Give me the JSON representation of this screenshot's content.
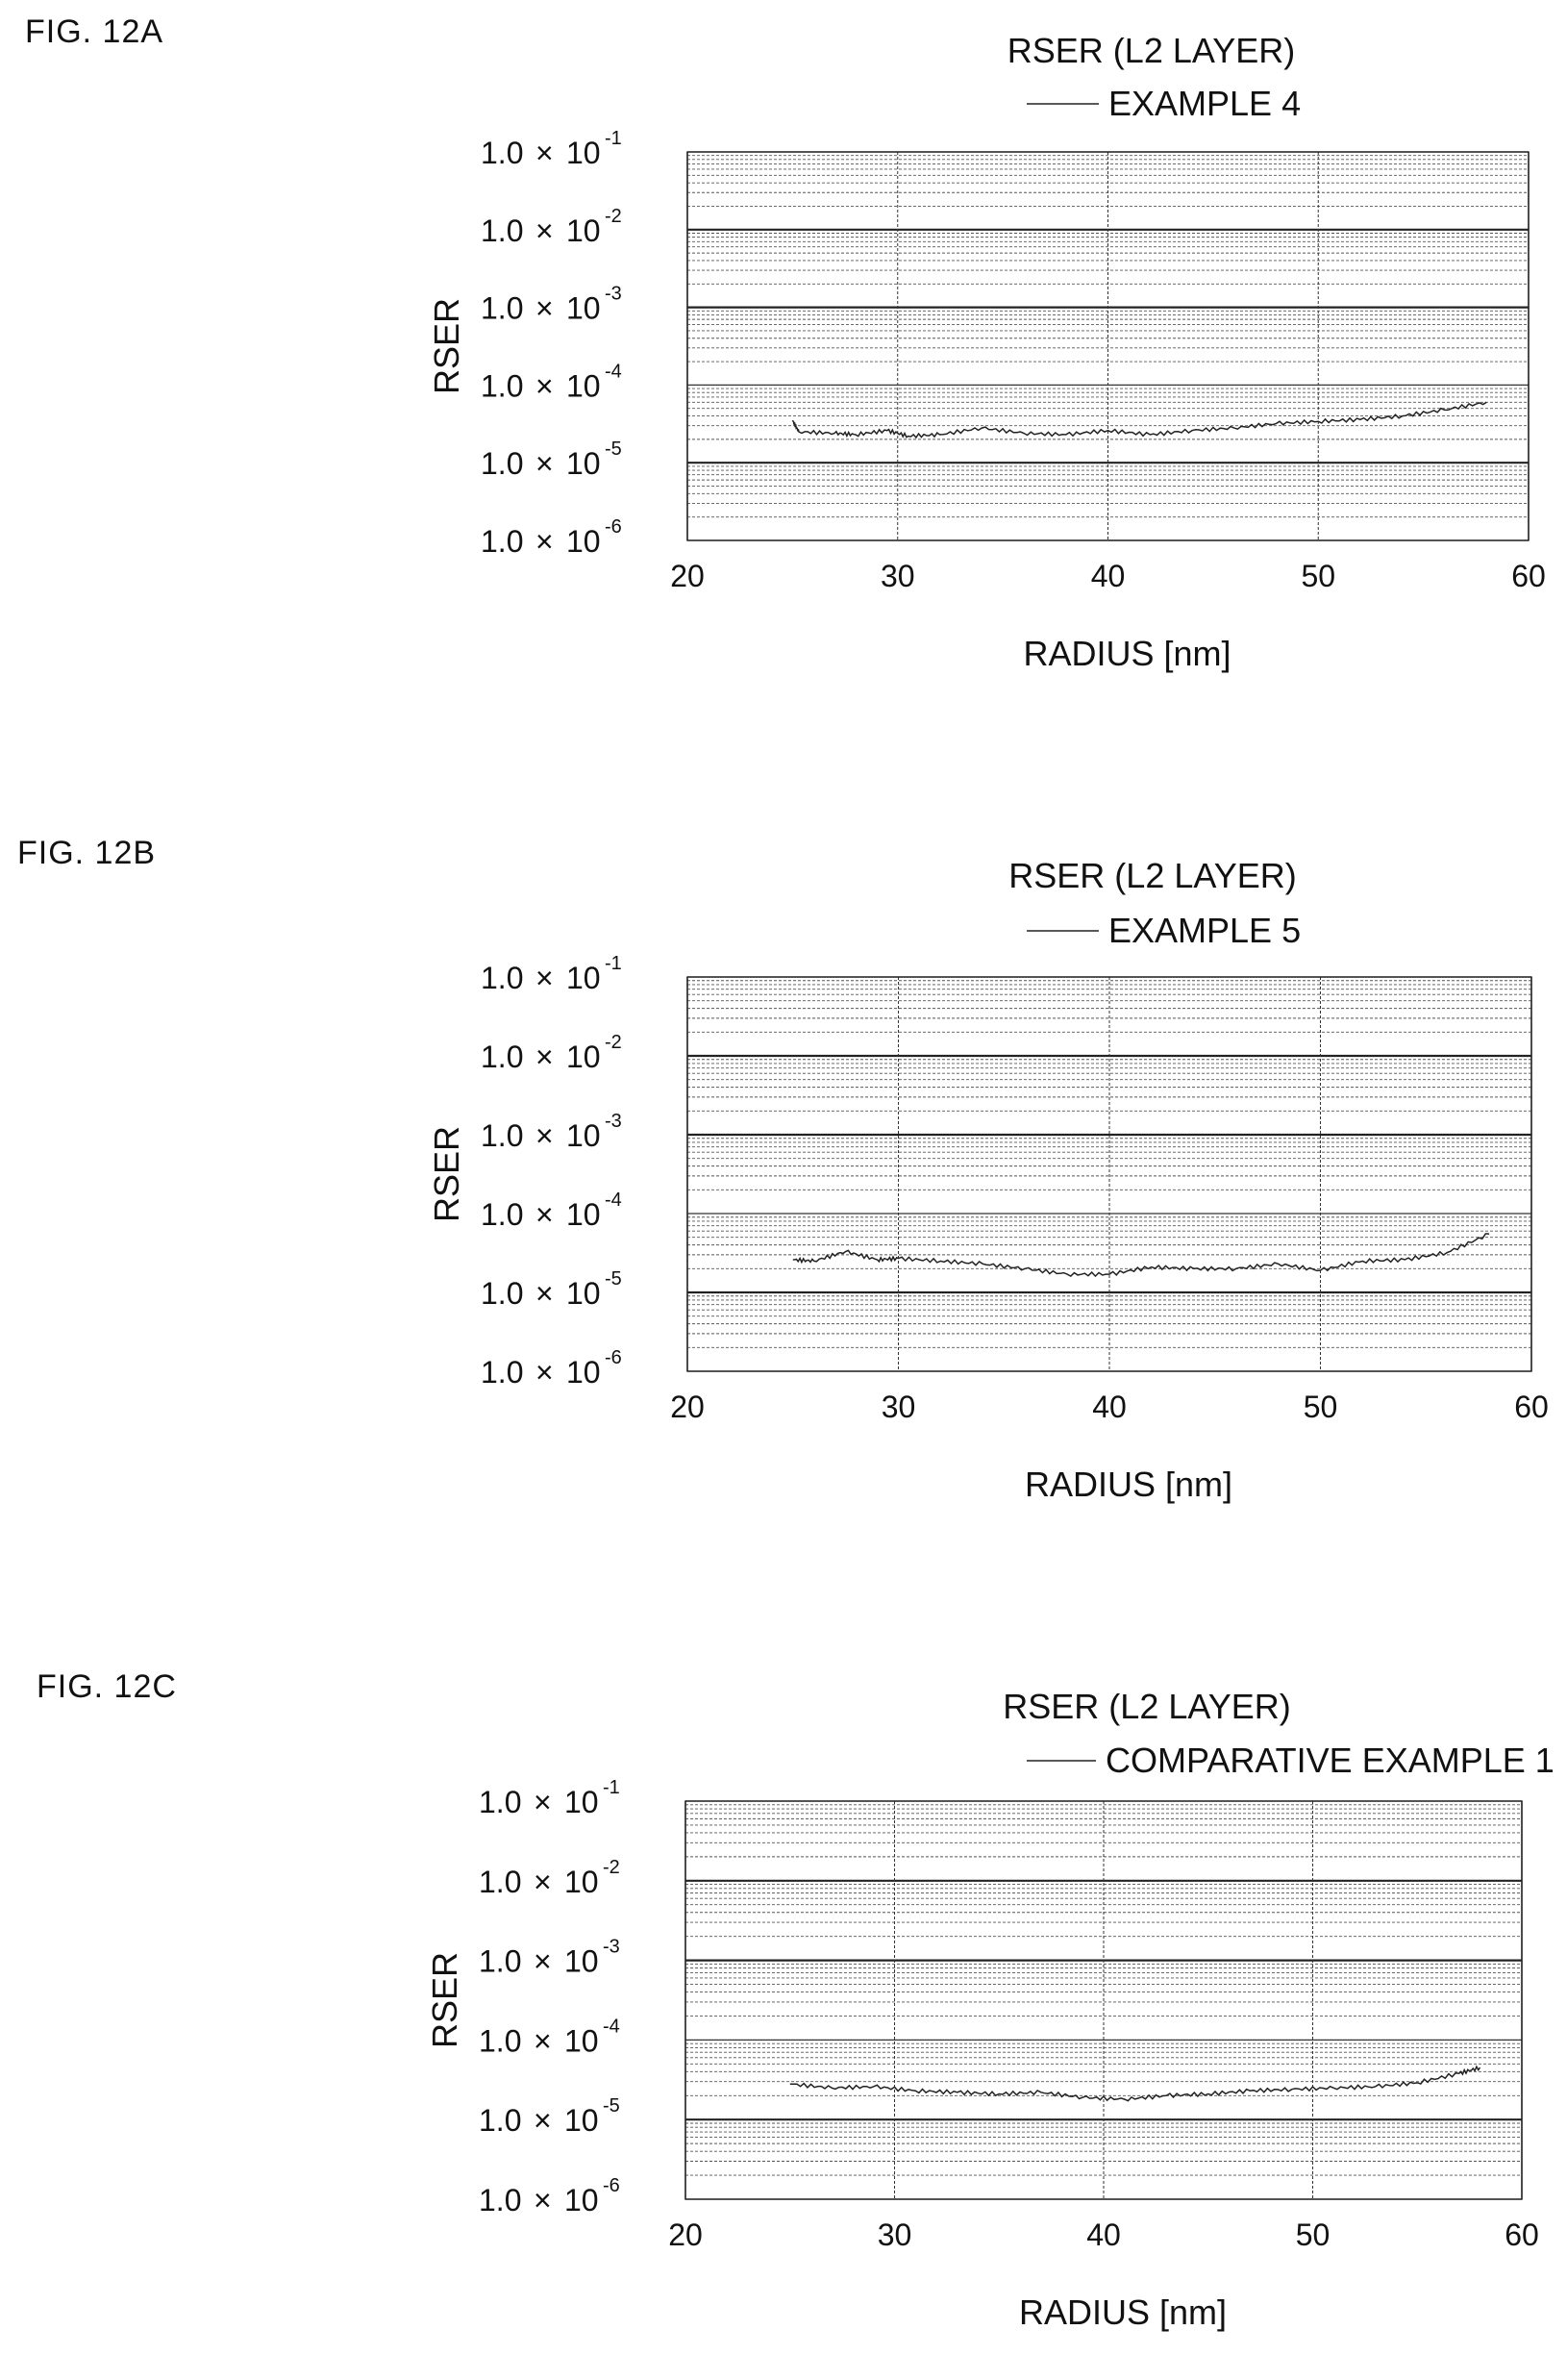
{
  "figures": [
    {
      "label": "FIG. 12A"
    },
    {
      "label": "FIG. 12B"
    },
    {
      "label": "FIG. 12C"
    }
  ],
  "chart_data": [
    {
      "type": "line",
      "title": "RSER (L2 LAYER)",
      "xlabel": "RADIUS [nm]",
      "ylabel": "RSER",
      "xlim": [
        20,
        60
      ],
      "ylim": [
        1e-06,
        0.1
      ],
      "yscale": "log",
      "grid": true,
      "xticks": [
        20,
        30,
        40,
        50,
        60
      ],
      "yticks": [
        {
          "mantissa": "1.0",
          "exponent": "-1",
          "value": 0.1
        },
        {
          "mantissa": "1.0",
          "exponent": "-2",
          "value": 0.01
        },
        {
          "mantissa": "1.0",
          "exponent": "-3",
          "value": 0.001
        },
        {
          "mantissa": "1.0",
          "exponent": "-4",
          "value": 0.0001
        },
        {
          "mantissa": "1.0",
          "exponent": "-5",
          "value": 1e-05
        },
        {
          "mantissa": "1.0",
          "exponent": "-6",
          "value": 1e-06
        }
      ],
      "series": [
        {
          "name": "EXAMPLE 4",
          "x": [
            25,
            25.3,
            27,
            28,
            29.5,
            30.5,
            32,
            34,
            36,
            38,
            40,
            42,
            44,
            46,
            48,
            50,
            52,
            54,
            56,
            58
          ],
          "y": [
            3.5e-05,
            2.5e-05,
            2.4e-05,
            2.3e-05,
            2.6e-05,
            2.2e-05,
            2.3e-05,
            2.8e-05,
            2.4e-05,
            2.3e-05,
            2.6e-05,
            2.3e-05,
            2.6e-05,
            2.8e-05,
            3.2e-05,
            3.4e-05,
            3.6e-05,
            4e-05,
            4.8e-05,
            6e-05
          ]
        }
      ]
    },
    {
      "type": "line",
      "title": "RSER (L2 LAYER)",
      "xlabel": "RADIUS [nm]",
      "ylabel": "RSER",
      "xlim": [
        20,
        60
      ],
      "ylim": [
        1e-06,
        0.1
      ],
      "yscale": "log",
      "grid": true,
      "xticks": [
        20,
        30,
        40,
        50,
        60
      ],
      "yticks": [
        {
          "mantissa": "1.0",
          "exponent": "-1",
          "value": 0.1
        },
        {
          "mantissa": "1.0",
          "exponent": "-2",
          "value": 0.01
        },
        {
          "mantissa": "1.0",
          "exponent": "-3",
          "value": 0.001
        },
        {
          "mantissa": "1.0",
          "exponent": "-4",
          "value": 0.0001
        },
        {
          "mantissa": "1.0",
          "exponent": "-5",
          "value": 1e-05
        },
        {
          "mantissa": "1.0",
          "exponent": "-6",
          "value": 1e-06
        }
      ],
      "series": [
        {
          "name": "EXAMPLE 5",
          "x": [
            25,
            26,
            27.5,
            29,
            30,
            32,
            34,
            36,
            38,
            40,
            42,
            44,
            46,
            48,
            50,
            52,
            54,
            56,
            58
          ],
          "y": [
            2.6e-05,
            2.5e-05,
            3.3e-05,
            2.6e-05,
            2.7e-05,
            2.5e-05,
            2.3e-05,
            2e-05,
            1.7e-05,
            1.7e-05,
            2.1e-05,
            2e-05,
            2e-05,
            2.3e-05,
            1.9e-05,
            2.5e-05,
            2.6e-05,
            3.2e-05,
            5.5e-05
          ]
        }
      ]
    },
    {
      "type": "line",
      "title": "RSER (L2 LAYER)",
      "xlabel": "RADIUS [nm]",
      "ylabel": "RSER",
      "xlim": [
        20,
        60
      ],
      "ylim": [
        1e-06,
        0.1
      ],
      "yscale": "log",
      "grid": true,
      "xticks": [
        20,
        30,
        40,
        50,
        60
      ],
      "yticks": [
        {
          "mantissa": "1.0",
          "exponent": "-1",
          "value": 0.1
        },
        {
          "mantissa": "1.0",
          "exponent": "-2",
          "value": 0.01
        },
        {
          "mantissa": "1.0",
          "exponent": "-3",
          "value": 0.001
        },
        {
          "mantissa": "1.0",
          "exponent": "-4",
          "value": 0.0001
        },
        {
          "mantissa": "1.0",
          "exponent": "-5",
          "value": 1e-05
        },
        {
          "mantissa": "1.0",
          "exponent": "-6",
          "value": 1e-06
        }
      ],
      "series": [
        {
          "name": "COMPARATIVE EXAMPLE 1",
          "x": [
            25,
            27,
            29,
            31,
            33,
            35,
            37,
            39,
            41,
            43,
            45,
            47,
            49,
            51,
            53,
            55,
            57,
            58
          ],
          "y": [
            2.8e-05,
            2.5e-05,
            2.6e-05,
            2.3e-05,
            2.2e-05,
            2.1e-05,
            2.2e-05,
            1.9e-05,
            1.8e-05,
            2e-05,
            2.1e-05,
            2.3e-05,
            2.4e-05,
            2.5e-05,
            2.6e-05,
            2.9e-05,
            3.8e-05,
            4.5e-05
          ]
        }
      ]
    }
  ]
}
